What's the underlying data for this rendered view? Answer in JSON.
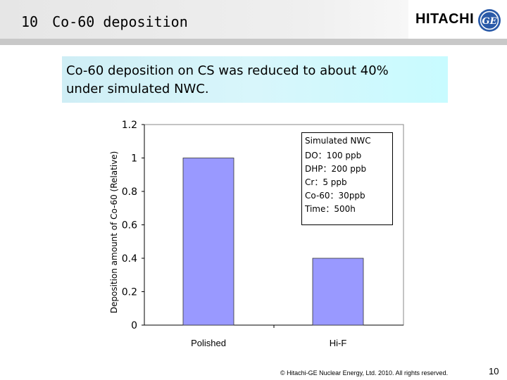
{
  "header": {
    "title": "10　Co-60 deposition",
    "brand": "HITACHI",
    "partner_logo": "ge-monogram-logo"
  },
  "callout": {
    "line1": "Co-60 deposition on CS was reduced to about 40%",
    "line2": "under simulated NWC."
  },
  "chart_data": {
    "type": "bar",
    "categories": [
      "Polished",
      "Hi-F"
    ],
    "values": [
      1.0,
      0.4
    ],
    "ylabel": "Deposition amount of Co-60 (Relative)",
    "xlabel": "",
    "ylim": [
      0,
      1.2
    ],
    "yticks": [
      "0",
      "0.2",
      "0.4",
      "0.6",
      "0.8",
      "1",
      "1.2"
    ],
    "bar_color": "#9999ff",
    "grid": false,
    "legend": {
      "placement": "top-right",
      "lines": [
        "Simulated NWC",
        "DO：100 ppb",
        "DHP：200 ppb",
        "Cr：5 ppb",
        "Co-60：30ppb",
        "Time：500h"
      ]
    }
  },
  "footer": {
    "copyright": "© Hitachi-GE Nuclear Energy, Ltd. 2010. All rights reserved.",
    "page": "10"
  }
}
